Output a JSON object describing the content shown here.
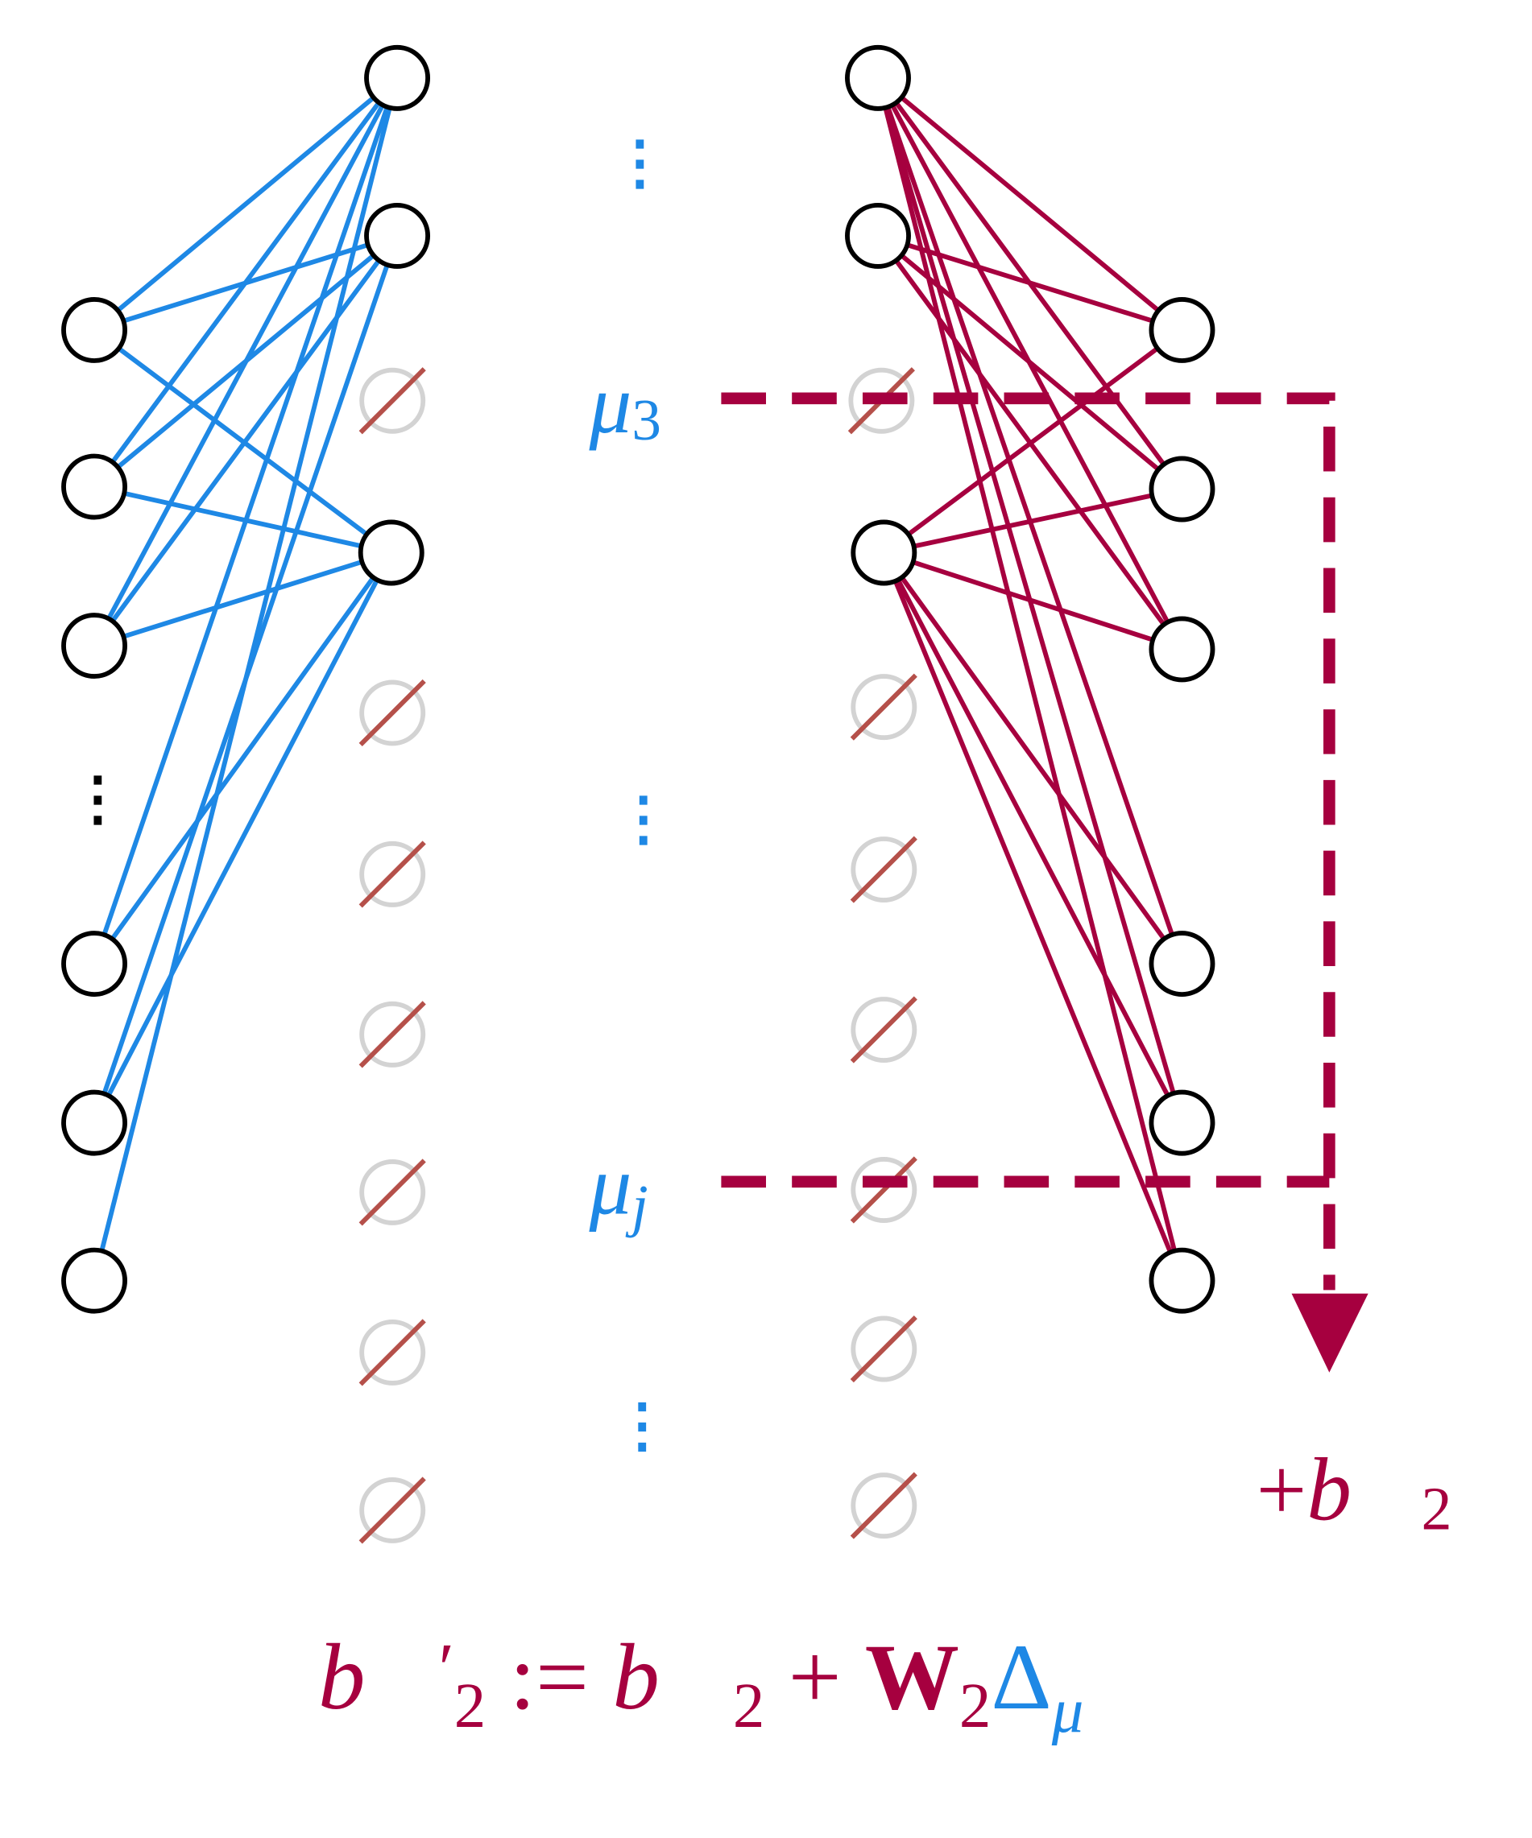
{
  "labels": {
    "mu3": [
      "μ",
      "3"
    ],
    "muj": [
      "μ",
      "j"
    ],
    "plus_b2": [
      "+",
      "b⃗",
      "2"
    ],
    "formula": [
      "b⃗",
      "′",
      "2",
      " := ",
      "b⃗",
      "2",
      " + ",
      "W",
      "2",
      "Δ",
      "μ"
    ],
    "input_dots": "⋮",
    "hidden_dots": [
      "⋮",
      "⋮",
      "⋮"
    ]
  }
}
